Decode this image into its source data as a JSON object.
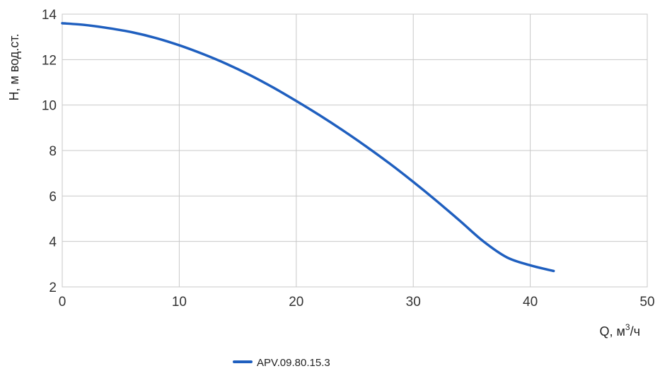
{
  "chart_data": {
    "type": "line",
    "xlabel": "Q, м³/ч",
    "xlabel_base": "Q, м",
    "xlabel_sup": "3",
    "xlabel_tail": "/ч",
    "ylabel": "H, м вод.ст.",
    "xlim": [
      0,
      50
    ],
    "ylim": [
      2,
      14
    ],
    "xticks": [
      0,
      10,
      20,
      30,
      40,
      50
    ],
    "yticks": [
      2,
      4,
      6,
      8,
      10,
      12,
      14
    ],
    "grid": true,
    "legend": "bottom-center",
    "series": [
      {
        "name": "APV.09.80.15.3",
        "color": "#1f5fbf",
        "x": [
          0,
          2,
          4,
          6,
          8,
          10,
          12,
          14,
          16,
          18,
          20,
          22,
          24,
          26,
          28,
          30,
          32,
          34,
          36,
          38,
          40,
          42
        ],
        "y": [
          13.6,
          13.52,
          13.38,
          13.2,
          12.95,
          12.63,
          12.25,
          11.82,
          11.33,
          10.78,
          10.18,
          9.55,
          8.88,
          8.17,
          7.42,
          6.62,
          5.78,
          4.9,
          4.0,
          3.3,
          2.95,
          2.7
        ]
      }
    ]
  }
}
